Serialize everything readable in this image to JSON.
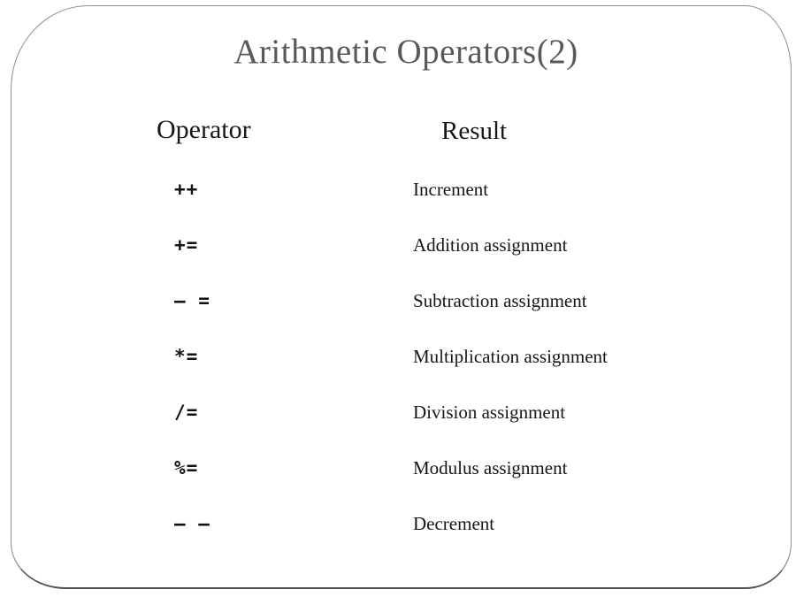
{
  "slide": {
    "title": "Arithmetic Operators(2)",
    "colors": {
      "title_text": "#595959",
      "body_text": "#161616",
      "frame_border": "#8c8c8c",
      "frame_border_bottom": "#505050",
      "background": "#ffffff"
    },
    "table": {
      "headers": {
        "operator": "Operator",
        "result": "Result"
      },
      "rows": [
        {
          "operator": "++",
          "result": "Increment"
        },
        {
          "operator": "+=",
          "result": "Addition assignment"
        },
        {
          "operator": "– =",
          "result": "Subtraction assignment"
        },
        {
          "operator": "*=",
          "result": "Multiplication assignment"
        },
        {
          "operator": "/=",
          "result": "Division assignment"
        },
        {
          "operator": "%=",
          "result": "Modulus assignment"
        },
        {
          "operator": "– –",
          "result": "Decrement"
        }
      ]
    }
  }
}
